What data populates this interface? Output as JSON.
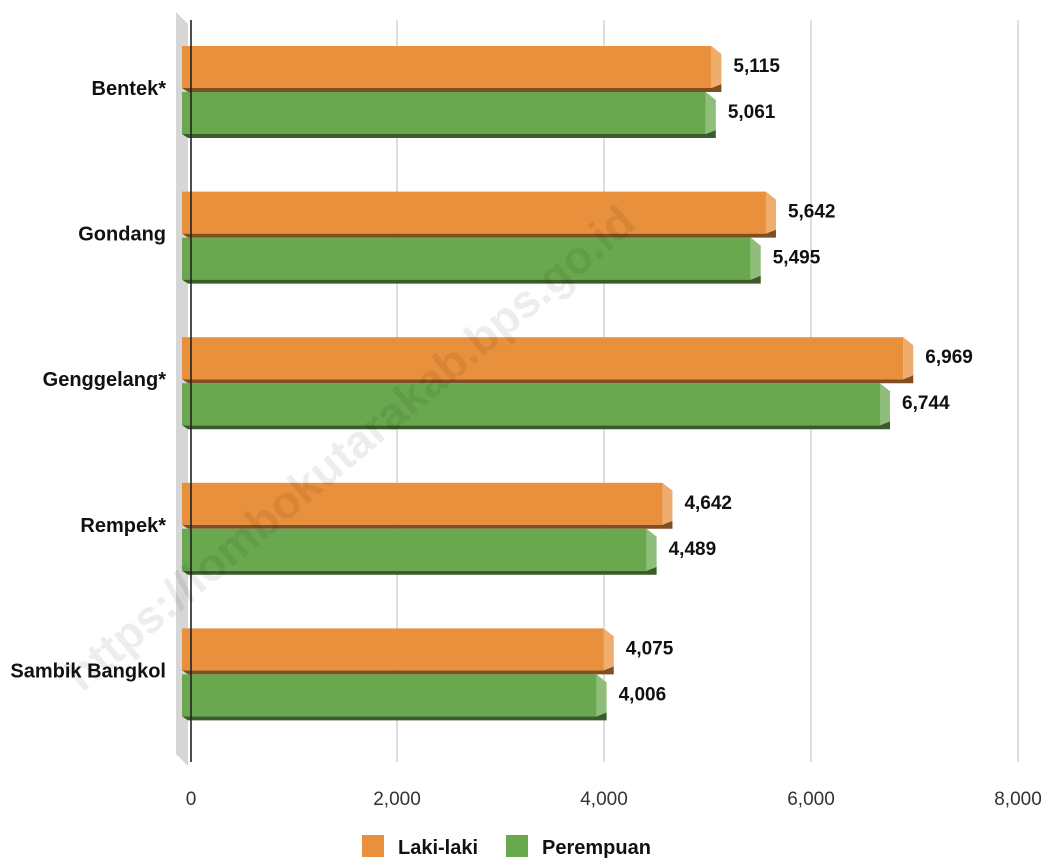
{
  "chart_data": {
    "type": "bar",
    "orientation": "horizontal",
    "categories": [
      "Bentek*",
      "Gondang",
      "Genggelang*",
      "Rempek*",
      "Sambik Bangkol"
    ],
    "series": [
      {
        "name": "Laki-laki",
        "color": "#E8903C",
        "values": [
          5115,
          5642,
          6969,
          4642,
          4075
        ]
      },
      {
        "name": "Perempuan",
        "color": "#6AA84F",
        "values": [
          5061,
          5495,
          6744,
          4489,
          4006
        ]
      }
    ],
    "value_labels": [
      [
        "5,115",
        "5,642",
        "6,969",
        "4,642",
        "4,075"
      ],
      [
        "5,061",
        "5,495",
        "6,744",
        "4,489",
        "4,006"
      ]
    ],
    "x_ticks": [
      0,
      2000,
      4000,
      6000,
      8000
    ],
    "x_tick_labels": [
      "0",
      "2,000",
      "4,000",
      "6,000",
      "8,000"
    ],
    "xlim": [
      0,
      8000
    ],
    "grid": "vertical",
    "legend_position": "bottom",
    "title": "",
    "xlabel": "",
    "ylabel": ""
  },
  "watermark": "https://lombokutarakab.bps.go.id"
}
